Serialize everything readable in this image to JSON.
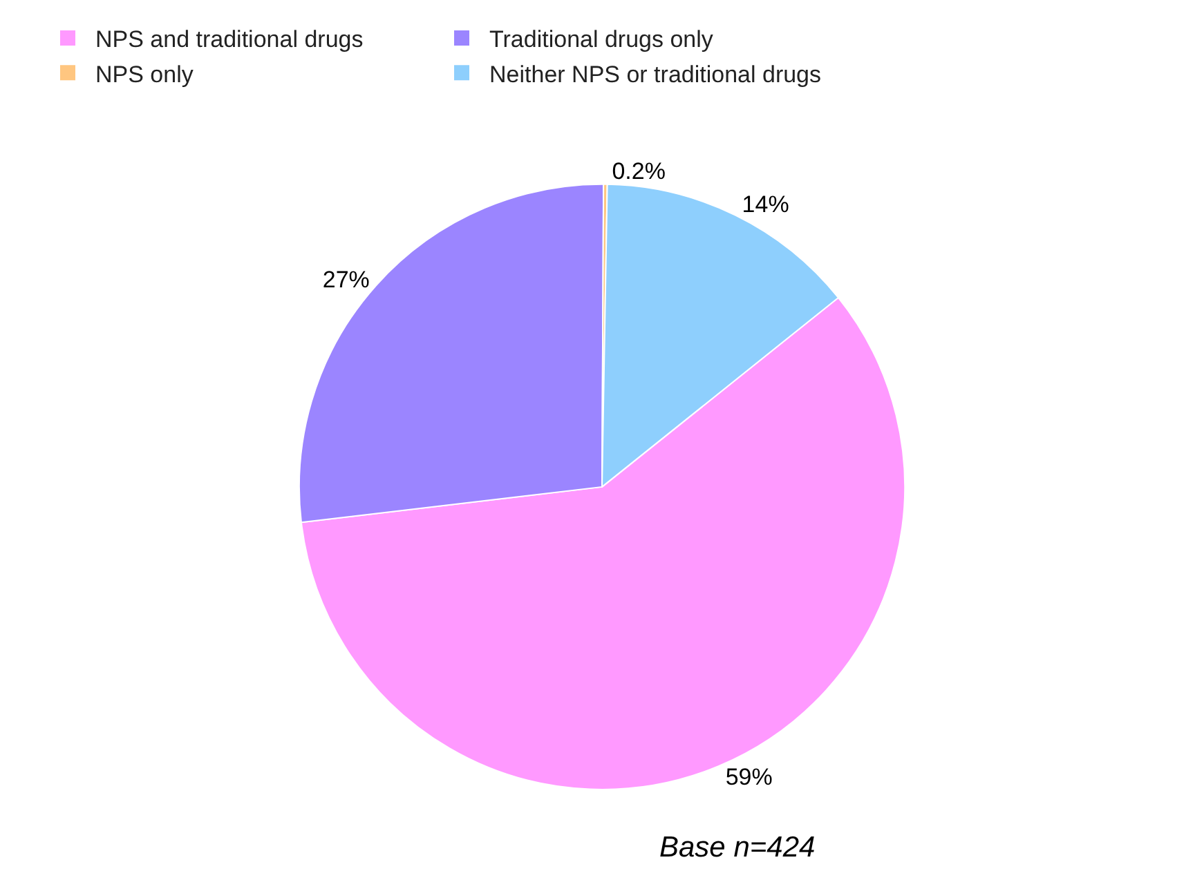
{
  "chart_data": {
    "type": "pie",
    "categories": [
      "NPS and traditional drugs",
      "Traditional drugs only",
      "NPS only",
      "Neither NPS or traditional drugs"
    ],
    "values": [
      59,
      27,
      0.2,
      14
    ],
    "value_labels": [
      "59%",
      "27%",
      "0.2%",
      "14%"
    ],
    "colors": [
      "#ff99ff",
      "#9b85ff",
      "#ffc680",
      "#8ecffd"
    ],
    "legend": "top",
    "annotations": [
      "Base n=424"
    ]
  }
}
